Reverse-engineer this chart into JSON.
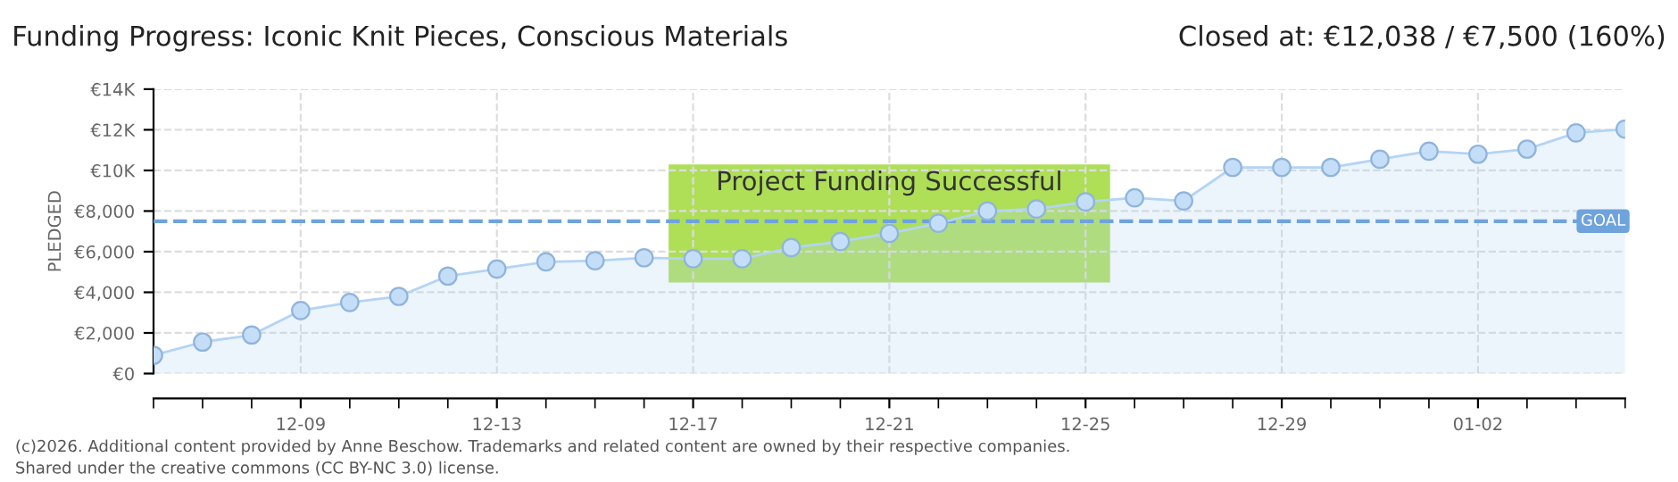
{
  "chart_data": {
    "type": "area",
    "title": "Funding Progress: Iconic Knit Pieces, Conscious Materials",
    "subtitle": "Closed at: €12,038 / €7,500 (160%)",
    "ylabel": "PLEDGED",
    "x": [
      "2025-12-06",
      "2025-12-07",
      "2025-12-08",
      "2025-12-09",
      "2025-12-10",
      "2025-12-11",
      "2025-12-12",
      "2025-12-13",
      "2025-12-14",
      "2025-12-15",
      "2025-12-16",
      "2025-12-17",
      "2025-12-18",
      "2025-12-19",
      "2025-12-20",
      "2025-12-21",
      "2025-12-22",
      "2025-12-23",
      "2025-12-24",
      "2025-12-25",
      "2025-12-26",
      "2025-12-27",
      "2025-12-28",
      "2025-12-29",
      "2025-12-30",
      "2025-12-31",
      "2026-01-01",
      "2026-01-02",
      "2026-01-03",
      "2026-01-04",
      "2026-01-05"
    ],
    "series": [
      {
        "color": "#b3d4f5",
        "values": [
          900,
          1550,
          1900,
          3100,
          3500,
          3800,
          4800,
          5150,
          5500,
          5550,
          5700,
          5650,
          5650,
          6200,
          6500,
          6900,
          7400,
          8000,
          8100,
          8450,
          8650,
          8500,
          10150,
          10150,
          10150,
          10550,
          10950,
          10800,
          11050,
          11850,
          12038
        ]
      }
    ],
    "xlim": [
      "2025-12-06",
      "2026-01-05"
    ],
    "xticks": [
      {
        "value": "2025-12-09",
        "label": "12-09"
      },
      {
        "value": "2025-12-13",
        "label": "12-13"
      },
      {
        "value": "2025-12-17",
        "label": "12-17"
      },
      {
        "value": "2025-12-21",
        "label": "12-21"
      },
      {
        "value": "2025-12-25",
        "label": "12-25"
      },
      {
        "value": "2025-12-29",
        "label": "12-29"
      },
      {
        "value": "2026-01-02",
        "label": "01-02"
      }
    ],
    "ylim": [
      0,
      14000
    ],
    "yticks": [
      {
        "value": 0,
        "label": "€0"
      },
      {
        "value": 2000,
        "label": "€2,000"
      },
      {
        "value": 4000,
        "label": "€4,000"
      },
      {
        "value": 6000,
        "label": "€6,000"
      },
      {
        "value": 8000,
        "label": "€8,000"
      },
      {
        "value": 10000,
        "label": "€10K"
      },
      {
        "value": 12000,
        "label": "€12K"
      },
      {
        "value": 14000,
        "label": "€14K"
      }
    ],
    "ref_lines": [
      {
        "axis": "y",
        "value": 7500,
        "label": "GOAL",
        "color": "#6fa3dc",
        "line_style": "dashed"
      }
    ],
    "annotations": [
      "Project Funding Successful",
      "(c)2026. Additional content provided by Anne Beschow. Trademarks and related content are owned by their respective companies.",
      "Shared under the creative commons (CC BY-NC 3.0) license."
    ],
    "grid": true,
    "marker": "circle",
    "line_style": "solid"
  }
}
